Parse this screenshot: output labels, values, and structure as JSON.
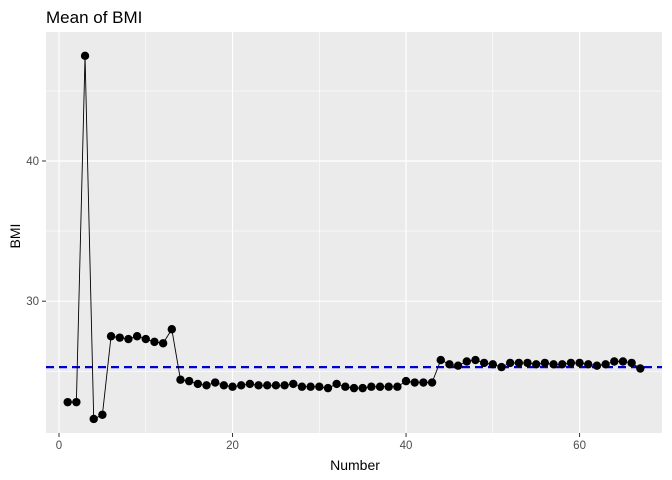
{
  "chart_data": {
    "type": "line",
    "title": "Mean of BMI",
    "xlabel": "Number",
    "ylabel": "BMI",
    "xlim": [
      -1.5,
      69.5
    ],
    "ylim": [
      20.6,
      49.2
    ],
    "xticks": [
      0,
      20,
      40,
      60
    ],
    "yticks": [
      30,
      40
    ],
    "grid": true,
    "legend": "none",
    "reference_line": {
      "y": 25.3,
      "style": "dashed",
      "color": "#0000cc"
    },
    "series": [
      {
        "x": [
          1,
          2,
          3,
          4,
          5,
          6,
          7,
          8,
          9,
          10,
          11,
          12,
          13,
          14,
          15,
          16,
          17,
          18,
          19,
          20,
          21,
          22,
          23,
          24,
          25,
          26,
          27,
          28,
          29,
          30,
          31,
          32,
          33,
          34,
          35,
          36,
          37,
          38,
          39,
          40,
          41,
          42,
          43,
          44,
          45,
          46,
          47,
          48,
          49,
          50,
          51,
          52,
          53,
          54,
          55,
          56,
          57,
          58,
          59,
          60,
          61,
          62,
          63,
          64,
          65,
          66,
          67
        ],
        "values": [
          22.8,
          22.8,
          47.5,
          21.6,
          21.9,
          27.5,
          27.4,
          27.3,
          27.5,
          27.3,
          27.1,
          27.0,
          28.0,
          24.4,
          24.3,
          24.1,
          24.0,
          24.2,
          24.0,
          23.9,
          24.0,
          24.1,
          24.0,
          24.0,
          24.0,
          24.0,
          24.1,
          23.9,
          23.9,
          23.9,
          23.8,
          24.1,
          23.9,
          23.8,
          23.8,
          23.9,
          23.9,
          23.9,
          23.9,
          24.3,
          24.2,
          24.2,
          24.2,
          25.8,
          25.5,
          25.4,
          25.7,
          25.8,
          25.6,
          25.5,
          25.3,
          25.6,
          25.6,
          25.6,
          25.5,
          25.6,
          25.5,
          25.5,
          25.6,
          25.6,
          25.5,
          25.4,
          25.5,
          25.7,
          25.7,
          25.6,
          25.2
        ],
        "color": "#000000"
      }
    ]
  },
  "colors": {
    "panel": "#ebebeb",
    "grid": "#ffffff",
    "point": "#000000",
    "reference": "#0000cc"
  }
}
